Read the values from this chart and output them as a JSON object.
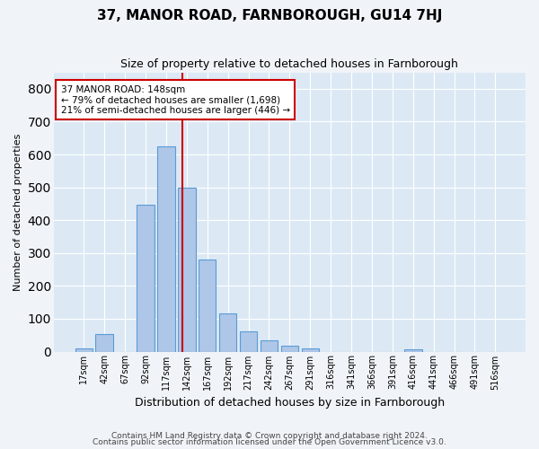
{
  "title": "37, MANOR ROAD, FARNBOROUGH, GU14 7HJ",
  "subtitle": "Size of property relative to detached houses in Farnborough",
  "xlabel": "Distribution of detached houses by size in Farnborough",
  "ylabel": "Number of detached properties",
  "bar_labels": [
    "17sqm",
    "42sqm",
    "67sqm",
    "92sqm",
    "117sqm",
    "142sqm",
    "167sqm",
    "192sqm",
    "217sqm",
    "242sqm",
    "267sqm",
    "291sqm",
    "316sqm",
    "341sqm",
    "366sqm",
    "391sqm",
    "416sqm",
    "441sqm",
    "466sqm",
    "491sqm",
    "516sqm"
  ],
  "bar_values": [
    10,
    52,
    0,
    447,
    625,
    500,
    280,
    115,
    62,
    33,
    18,
    9,
    0,
    0,
    0,
    0,
    7,
    0,
    0,
    0,
    0
  ],
  "bar_color": "#aec6e8",
  "bar_edge_color": "#5b9bd5",
  "background_color": "#dce9f5",
  "grid_color": "#ffffff",
  "fig_background": "#f0f4f8",
  "ylim": [
    0,
    850
  ],
  "yticks": [
    0,
    100,
    200,
    300,
    400,
    500,
    600,
    700,
    800
  ],
  "vline_color": "#cc0000",
  "annotation_box_edge": "#cc0000",
  "property_label": "37 MANOR ROAD: 148sqm",
  "annotation_line1": "← 79% of detached houses are smaller (1,698)",
  "annotation_line2": "21% of semi-detached houses are larger (446) →",
  "footnote1": "Contains HM Land Registry data © Crown copyright and database right 2024.",
  "footnote2": "Contains public sector information licensed under the Open Government Licence v3.0.",
  "title_fontsize": 11,
  "subtitle_fontsize": 9,
  "xlabel_fontsize": 9,
  "ylabel_fontsize": 8,
  "tick_fontsize": 7,
  "annotation_fontsize": 7.5,
  "footnote_fontsize": 6.5
}
